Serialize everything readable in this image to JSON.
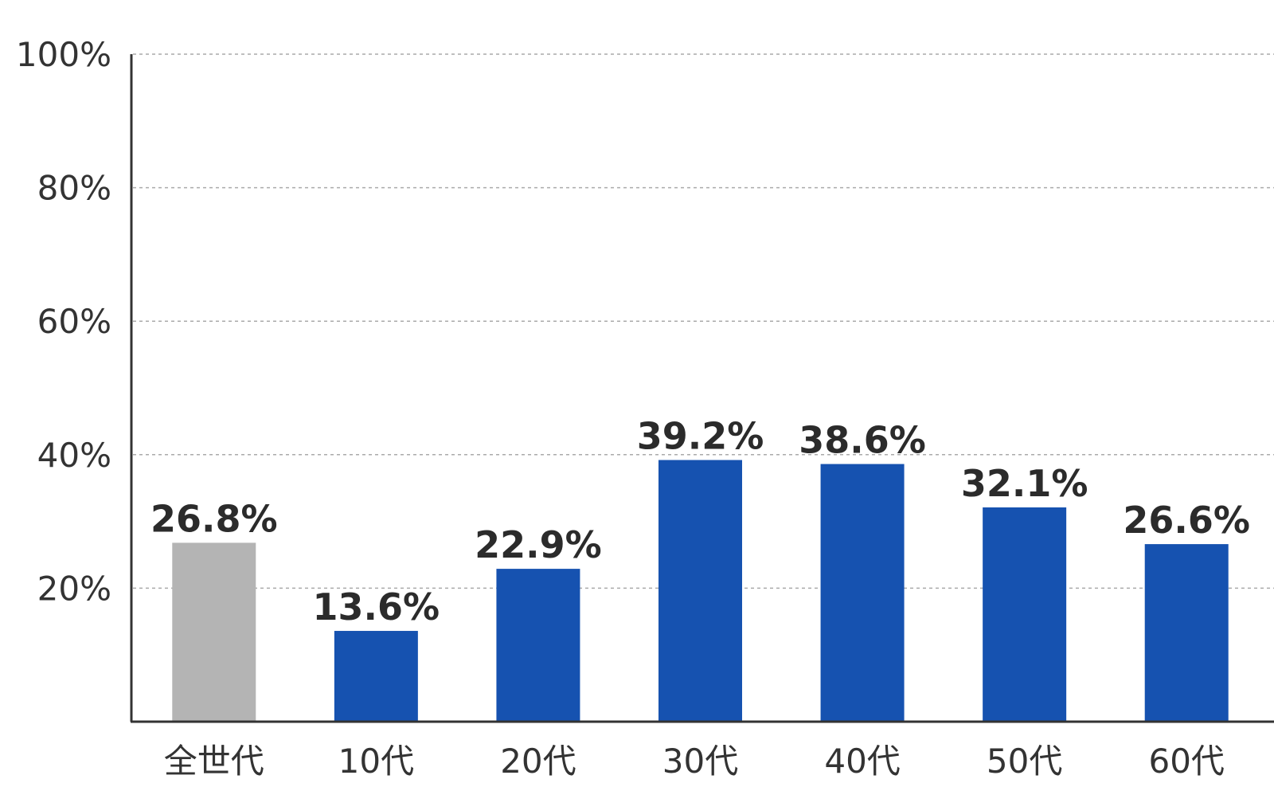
{
  "chart_data": {
    "type": "bar",
    "categories": [
      "全世代",
      "10代",
      "20代",
      "30代",
      "40代",
      "50代",
      "60代"
    ],
    "values": [
      26.8,
      13.6,
      22.9,
      39.2,
      38.6,
      32.1,
      26.6
    ],
    "value_labels": [
      "26.8%",
      "13.6%",
      "22.9%",
      "39.2%",
      "38.6%",
      "32.1%",
      "26.6%"
    ],
    "bar_colors": [
      "#b4b4b4",
      "#1652b0",
      "#1652b0",
      "#1652b0",
      "#1652b0",
      "#1652b0",
      "#1652b0"
    ],
    "yticks": [
      {
        "value": 20,
        "label": "20%"
      },
      {
        "value": 40,
        "label": "40%"
      },
      {
        "value": 60,
        "label": "60%"
      },
      {
        "value": 80,
        "label": "80%"
      },
      {
        "value": 100,
        "label": "100%"
      }
    ],
    "ylim": [
      0,
      100
    ],
    "grid": true,
    "title": "",
    "xlabel": "",
    "ylabel": ""
  }
}
